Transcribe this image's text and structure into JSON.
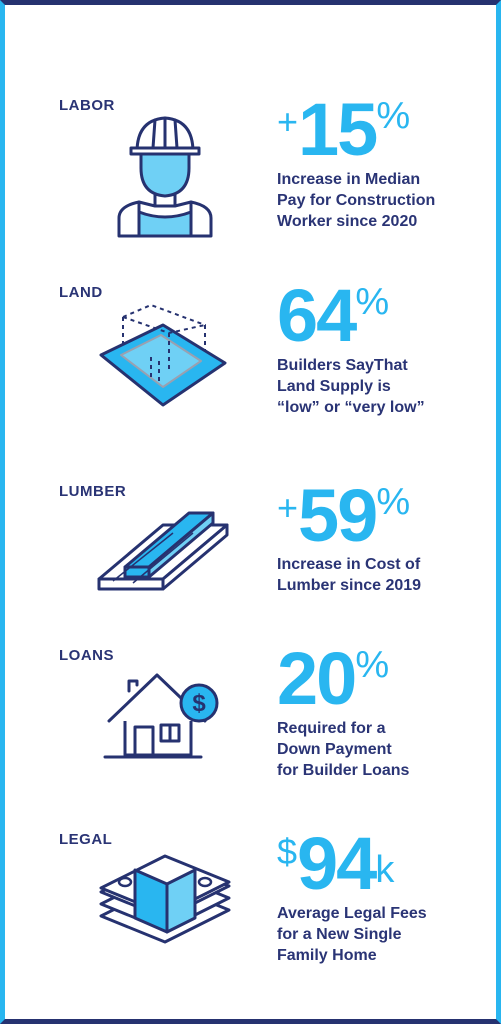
{
  "colors": {
    "navy": "#263270",
    "accent": "#29b6f0",
    "light_accent": "#6fd0f5"
  },
  "sections": [
    {
      "label": "LABOR",
      "prefix": "+",
      "value": "15",
      "suffix": "%",
      "description": "Increase in Median\nPay for Construction\nWorker since 2020",
      "icon": "construction-worker-icon"
    },
    {
      "label": "LAND",
      "prefix": "",
      "value": "64",
      "suffix": "%",
      "description": "Builders SayThat\nLand Supply is\n“low” or “very low”",
      "icon": "land-plot-icon"
    },
    {
      "label": "LUMBER",
      "prefix": "+",
      "value": "59",
      "suffix": "%",
      "description": "Increase in Cost of\nLumber since 2019",
      "icon": "lumber-planks-icon"
    },
    {
      "label": "LOANS",
      "prefix": "",
      "value": "20",
      "suffix": "%",
      "description": "Required for a\nDown Payment\nfor Builder Loans",
      "icon": "house-dollar-icon"
    },
    {
      "label": "LEGAL",
      "prefix": "$",
      "value": "94",
      "suffix": "k",
      "description": "Average Legal Fees\nfor a New Single\nFamily Home",
      "icon": "money-stack-icon"
    }
  ]
}
